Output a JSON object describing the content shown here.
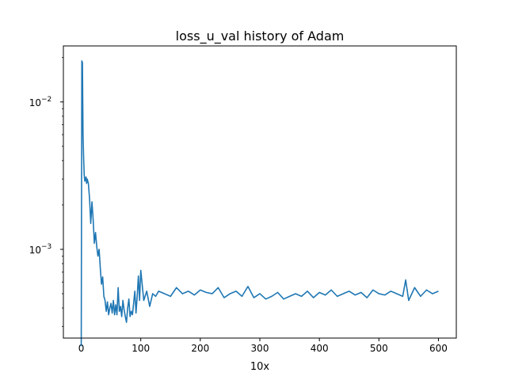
{
  "chart_data": {
    "type": "line",
    "title": "loss_u_val history of Adam",
    "xlabel": "10x",
    "ylabel": "",
    "xlim": [
      -30,
      630
    ],
    "ylim": [
      0.00025,
      0.024
    ],
    "yscale": "log",
    "grid": false,
    "legend": "none",
    "x_ticks": [
      {
        "value": 0,
        "label": "0"
      },
      {
        "value": 100,
        "label": "100"
      },
      {
        "value": 200,
        "label": "200"
      },
      {
        "value": 300,
        "label": "300"
      },
      {
        "value": 400,
        "label": "400"
      },
      {
        "value": 500,
        "label": "500"
      },
      {
        "value": 600,
        "label": "600"
      }
    ],
    "y_ticks": [
      {
        "value": 0.001,
        "base": "10",
        "exp": "−3"
      },
      {
        "value": 0.01,
        "base": "10",
        "exp": "−2"
      }
    ],
    "series": [
      {
        "color": "#1f77b4",
        "x": [
          0,
          1,
          2,
          3,
          4,
          5,
          6,
          7,
          8,
          9,
          10,
          12,
          14,
          16,
          18,
          20,
          22,
          24,
          26,
          28,
          30,
          32,
          34,
          36,
          38,
          40,
          42,
          44,
          46,
          48,
          50,
          52,
          54,
          56,
          58,
          60,
          62,
          64,
          66,
          68,
          70,
          72,
          74,
          76,
          78,
          80,
          82,
          84,
          86,
          88,
          90,
          92,
          94,
          96,
          98,
          100,
          105,
          110,
          115,
          120,
          125,
          130,
          140,
          150,
          160,
          170,
          180,
          190,
          200,
          210,
          220,
          230,
          240,
          250,
          260,
          270,
          280,
          290,
          300,
          310,
          320,
          330,
          340,
          350,
          360,
          370,
          380,
          390,
          400,
          410,
          420,
          430,
          440,
          450,
          460,
          470,
          480,
          490,
          500,
          510,
          520,
          530,
          540,
          545,
          550,
          560,
          570,
          580,
          590,
          600
        ],
        "y": [
          0.00022,
          0.019,
          0.0185,
          0.006,
          0.0042,
          0.0032,
          0.0029,
          0.003,
          0.0031,
          0.0028,
          0.003,
          0.0028,
          0.0022,
          0.0015,
          0.0021,
          0.0016,
          0.0011,
          0.0013,
          0.00105,
          0.0009,
          0.001,
          0.00075,
          0.00058,
          0.00065,
          0.00048,
          0.00045,
          0.00038,
          0.00044,
          0.00036,
          0.0004,
          0.00043,
          0.00037,
          0.00045,
          0.00036,
          0.00042,
          0.00036,
          0.00055,
          0.00038,
          0.00041,
          0.00035,
          0.00045,
          0.00039,
          0.00035,
          0.00032,
          0.0004,
          0.00046,
          0.00035,
          0.00038,
          0.00036,
          0.00043,
          0.00052,
          0.00037,
          0.00048,
          0.00066,
          0.00045,
          0.00072,
          0.00045,
          0.00052,
          0.00041,
          0.0005,
          0.00048,
          0.00052,
          0.0005,
          0.00048,
          0.00055,
          0.0005,
          0.00052,
          0.00049,
          0.00053,
          0.00051,
          0.0005,
          0.00055,
          0.00047,
          0.0005,
          0.00052,
          0.00048,
          0.00056,
          0.00047,
          0.0005,
          0.00046,
          0.00048,
          0.00051,
          0.00046,
          0.00048,
          0.0005,
          0.00048,
          0.00052,
          0.00047,
          0.00051,
          0.00049,
          0.00053,
          0.00048,
          0.0005,
          0.00052,
          0.00049,
          0.00051,
          0.00047,
          0.00053,
          0.0005,
          0.00049,
          0.00052,
          0.0005,
          0.00048,
          0.00062,
          0.00045,
          0.00055,
          0.00048,
          0.00053,
          0.0005,
          0.00052
        ]
      }
    ]
  }
}
